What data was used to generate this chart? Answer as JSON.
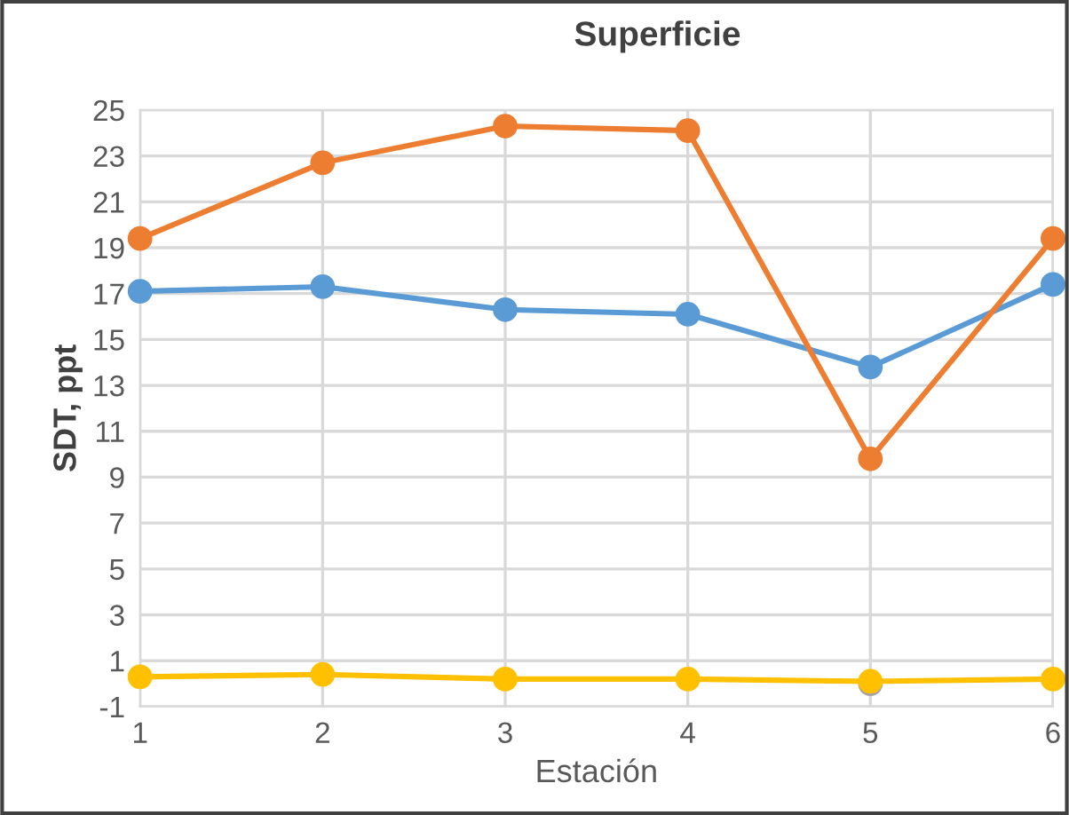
{
  "chart_data": {
    "type": "line",
    "title": "Superficie",
    "xlabel": "Estación",
    "ylabel": "SDT, ppt",
    "categories": [
      "1",
      "2",
      "3",
      "4",
      "5",
      "6"
    ],
    "series": [
      {
        "color": "#5b9bd5",
        "values": [
          17.1,
          17.3,
          16.3,
          16.1,
          13.8,
          17.4
        ]
      },
      {
        "color": "#ed7d31",
        "values": [
          19.4,
          22.7,
          24.3,
          24.1,
          9.8,
          19.4
        ]
      },
      {
        "color": "#a5a5a5",
        "values": [
          null,
          null,
          null,
          null,
          0.0,
          null
        ]
      },
      {
        "color": "#ffc000",
        "values": [
          0.3,
          0.4,
          0.2,
          0.2,
          0.1,
          0.2
        ]
      }
    ],
    "ylim": [
      -1,
      25
    ],
    "yticks": [
      {
        "value": -1,
        "label": "-1"
      },
      1,
      3,
      5,
      7,
      9,
      11,
      13,
      15,
      17,
      19,
      21,
      23,
      25
    ],
    "grid": true,
    "legend": false,
    "marker": "circle",
    "line_style": "solid"
  }
}
